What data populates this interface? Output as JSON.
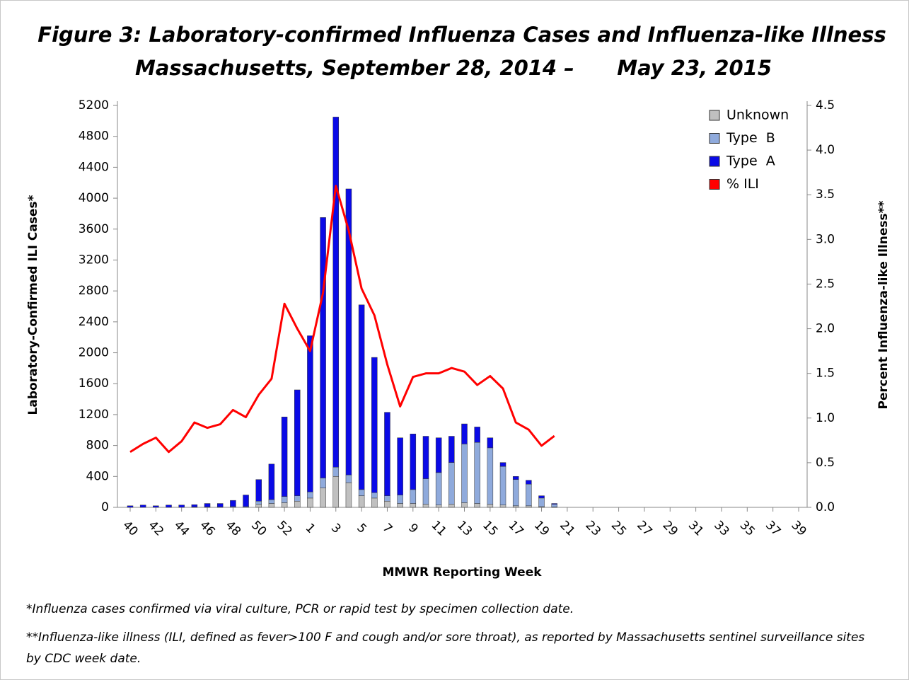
{
  "chart_data": {
    "type": "bar",
    "title": [
      "Figure 3: Laboratory-confirmed Influenza Cases and Influenza-like Illness",
      "Massachusetts, September 28, 2014 –      May 23, 2015"
    ],
    "x_label": "MMWR Reporting Week",
    "y_label": "Laboratory-Confirmed ILI Cases*",
    "y2_label": "Percent Influenza-like Illness**",
    "categories": [
      "40",
      null,
      "42",
      null,
      "44",
      null,
      "46",
      null,
      "48",
      null,
      "50",
      null,
      "52",
      null,
      "1",
      null,
      "3",
      null,
      "5",
      null,
      "7",
      null,
      "9",
      null,
      "11",
      null,
      "13",
      null,
      "15",
      null,
      "17",
      null,
      "19",
      null,
      "21",
      null,
      "23",
      null,
      "25",
      null,
      "27",
      null,
      "29",
      null,
      "31",
      null,
      "33",
      null,
      "35",
      null,
      "37",
      null,
      "39"
    ],
    "series": [
      {
        "name": "Unknown",
        "color": "#c0c0c0",
        "values": [
          0,
          0,
          0,
          0,
          0,
          0,
          0,
          0,
          0,
          0,
          40,
          50,
          60,
          80,
          120,
          250,
          400,
          320,
          150,
          120,
          80,
          50,
          50,
          40,
          30,
          40,
          60,
          50,
          40,
          30,
          20,
          20,
          10,
          5,
          null,
          null,
          null,
          null,
          null,
          null,
          null,
          null,
          null,
          null,
          null,
          null,
          null,
          null,
          null,
          null,
          null,
          null,
          null
        ]
      },
      {
        "name": "Type  B",
        "color": "#8faadc",
        "values": [
          0,
          0,
          0,
          0,
          0,
          5,
          5,
          5,
          10,
          10,
          40,
          50,
          80,
          70,
          80,
          130,
          120,
          100,
          80,
          70,
          70,
          110,
          180,
          330,
          420,
          540,
          760,
          790,
          730,
          500,
          340,
          280,
          110,
          35,
          null,
          null,
          null,
          null,
          null,
          null,
          null,
          null,
          null,
          null,
          null,
          null,
          null,
          null,
          null,
          null,
          null,
          null,
          null
        ]
      },
      {
        "name": "Type  A",
        "color": "#0a0ae6",
        "values": [
          20,
          30,
          20,
          30,
          30,
          30,
          45,
          45,
          80,
          150,
          280,
          460,
          1030,
          1370,
          2020,
          3370,
          4530,
          3700,
          2390,
          1750,
          1080,
          740,
          720,
          550,
          450,
          340,
          260,
          200,
          130,
          50,
          40,
          50,
          30,
          10,
          null,
          null,
          null,
          null,
          null,
          null,
          null,
          null,
          null,
          null,
          null,
          null,
          null,
          null,
          null,
          null,
          null,
          null,
          null
        ]
      },
      {
        "name": "% ILI",
        "color": "#ff0000",
        "axis": "y2",
        "values": [
          0.62,
          0.71,
          0.78,
          0.62,
          0.74,
          0.95,
          0.89,
          0.93,
          1.09,
          1.01,
          1.26,
          1.44,
          2.28,
          2.0,
          1.75,
          2.4,
          3.6,
          3.1,
          2.45,
          2.15,
          1.6,
          1.13,
          1.46,
          1.5,
          1.5,
          1.56,
          1.52,
          1.37,
          1.47,
          1.33,
          0.95,
          0.87,
          0.69,
          0.8,
          null,
          null,
          null,
          null,
          null,
          null,
          null,
          null,
          null,
          null,
          null,
          null,
          null,
          null,
          null,
          null,
          null,
          null,
          null
        ]
      }
    ],
    "ylim": [
      0,
      5200
    ],
    "yticks": [
      0,
      400,
      800,
      1200,
      1600,
      2000,
      2400,
      2800,
      3200,
      3600,
      4000,
      4400,
      4800,
      5200
    ],
    "y2lim": [
      0,
      4.5
    ],
    "y2ticks": [
      {
        "value": 0,
        "label": "0.0"
      },
      0.5,
      {
        "value": 1,
        "label": "1.0"
      },
      1.5,
      {
        "value": 2,
        "label": "2.0"
      },
      2.5,
      {
        "value": 3,
        "label": "3.0"
      },
      3.5,
      {
        "value": 4,
        "label": "4.0"
      },
      4.5
    ],
    "stacked": true,
    "legend": "upper right",
    "grid": false
  },
  "footnotes": [
    "*Influenza cases confirmed via viral culture, PCR or rapid test by specimen collection date.",
    "**Influenza-like illness (ILI, defined as fever>100 F and cough and/or sore throat), as reported by Massachusetts sentinel surveillance sites by CDC week date."
  ]
}
